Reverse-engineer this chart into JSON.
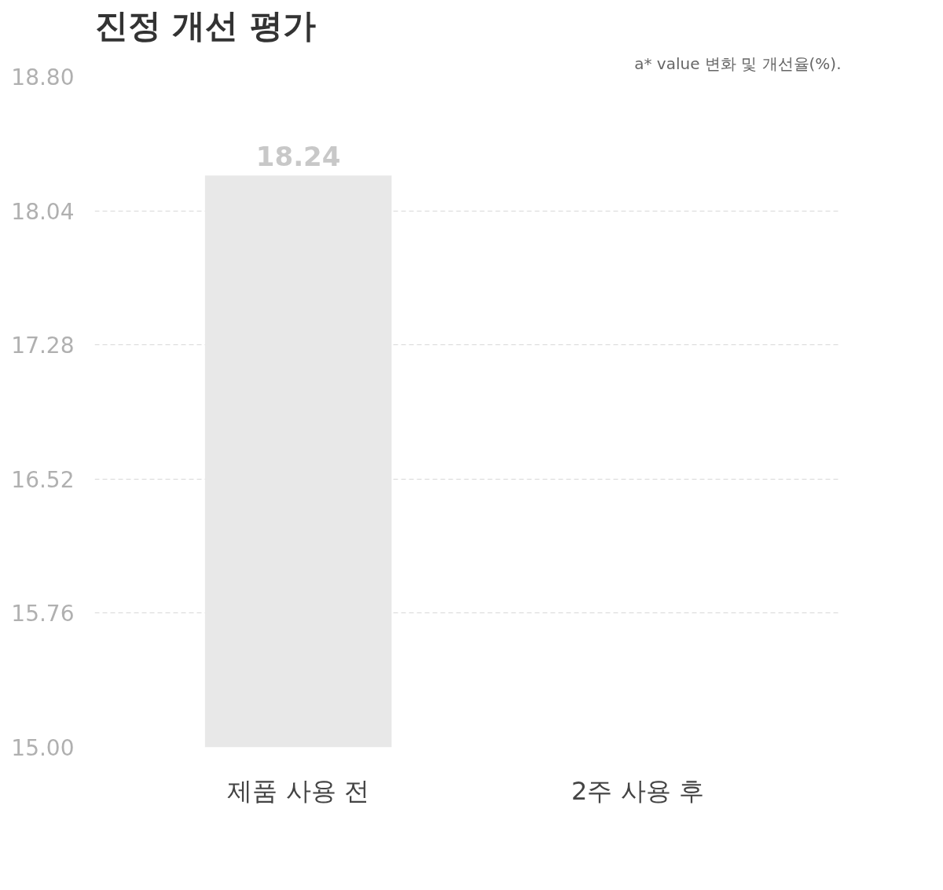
{
  "chart_data": {
    "type": "bar",
    "title": "진정 개선 평가",
    "subtitle": "a* value 변화 및 개선율(%).",
    "categories": [
      "제품 사용 전",
      "2주 사용 후"
    ],
    "values": [
      18.24,
      null
    ],
    "color": "#e8e8e8",
    "data_labels": true,
    "ylim": [
      15.0,
      18.8
    ],
    "yticks": [
      {
        "value": 15.0,
        "label": "15.00"
      },
      {
        "value": 15.76,
        "label": "15.76"
      },
      {
        "value": 16.52,
        "label": "16.52"
      },
      {
        "value": 17.28,
        "label": "17.28"
      },
      {
        "value": 18.04,
        "label": "18.04"
      },
      {
        "value": 18.8,
        "label": "18.80"
      }
    ],
    "grid": "y"
  }
}
